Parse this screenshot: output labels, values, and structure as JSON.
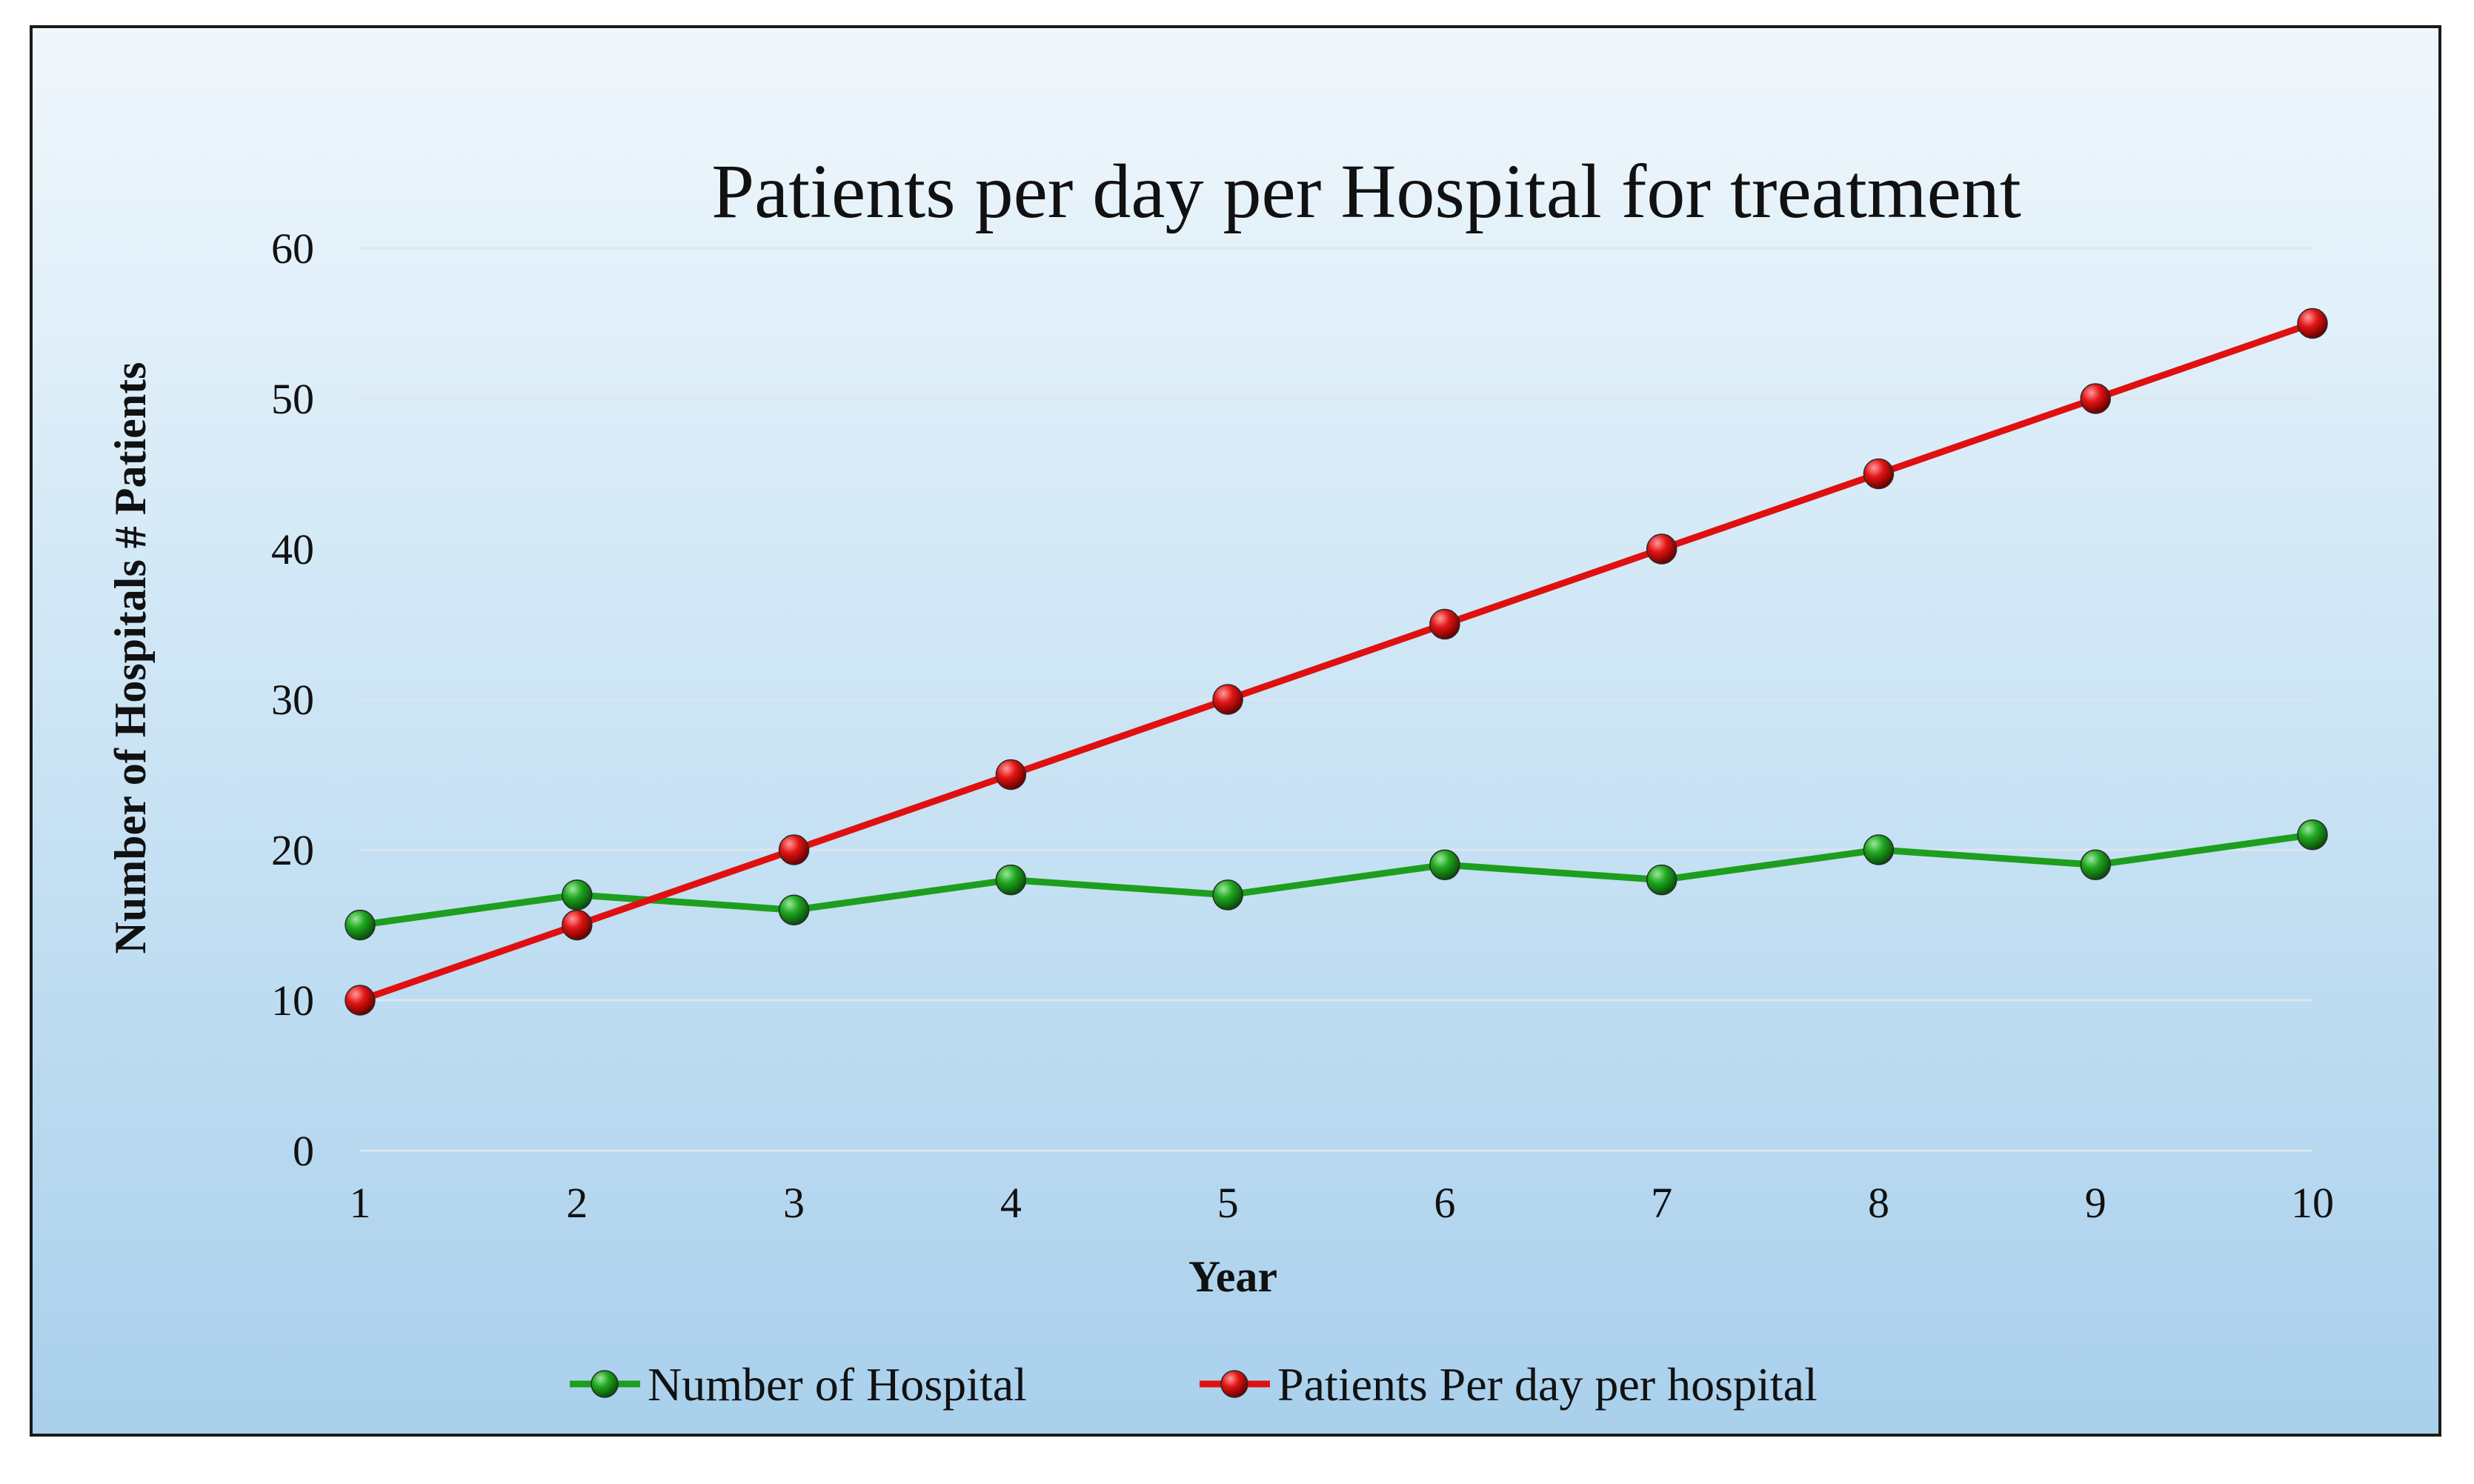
{
  "chart_data": {
    "type": "line",
    "title": "Patients per day per Hospital for treatment",
    "xlabel": "Year",
    "ylabel": "Number of Hospitals # Patients",
    "categories": [
      "1",
      "2",
      "3",
      "4",
      "5",
      "6",
      "7",
      "8",
      "9",
      "10"
    ],
    "x": [
      1,
      2,
      3,
      4,
      5,
      6,
      7,
      8,
      9,
      10
    ],
    "ylim": [
      0,
      60
    ],
    "yticks": [
      0,
      10,
      20,
      30,
      40,
      50,
      60
    ],
    "grid": true,
    "legend_position": "bottom",
    "series": [
      {
        "name": "Number of Hospital",
        "color": "#1e9e1e",
        "values": [
          15,
          17,
          16,
          18,
          17,
          19,
          18,
          20,
          19,
          21
        ]
      },
      {
        "name": "Patients Per day per hospital",
        "color": "#e01010",
        "values": [
          10,
          15,
          20,
          25,
          30,
          35,
          40,
          45,
          50,
          55
        ]
      }
    ]
  }
}
